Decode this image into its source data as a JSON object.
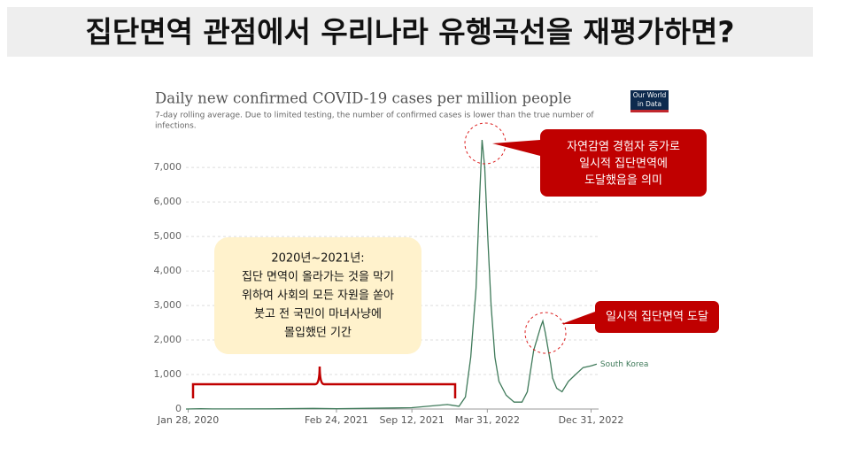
{
  "header": {
    "title": "집단면역 관점에서 우리나라 유행곡선을 재평가하면?"
  },
  "chart_data": {
    "type": "line",
    "title": "Daily new confirmed COVID-19 cases per million people",
    "subtitle": [
      "7-day rolling average. Due to limited testing, the number of confirmed cases is lower than the true number of",
      "infections."
    ],
    "logo": [
      "Our World",
      "in Data"
    ],
    "x": [
      "2020-01-22",
      "2020-03-01",
      "2020-04-01",
      "2020-08-30",
      "2020-12-25",
      "2021-02-24",
      "2021-07-25",
      "2021-09-12",
      "2021-12-15",
      "2022-01-15",
      "2022-02-01",
      "2022-02-15",
      "2022-03-01",
      "2022-03-10",
      "2022-03-17",
      "2022-03-24",
      "2022-04-01",
      "2022-04-10",
      "2022-04-20",
      "2022-05-01",
      "2022-05-20",
      "2022-06-10",
      "2022-07-01",
      "2022-07-15",
      "2022-08-01",
      "2022-08-20",
      "2022-08-25",
      "2022-09-01",
      "2022-09-15",
      "2022-09-20",
      "2022-10-01",
      "2022-10-15",
      "2022-11-01",
      "2022-11-20",
      "2022-12-10",
      "2022-12-31",
      "2023-01-15"
    ],
    "series": [
      {
        "name": "South Korea",
        "color": "#3f7a5a",
        "values": [
          0,
          10,
          2,
          6,
          19,
          8,
          30,
          39,
          130,
          80,
          350,
          1500,
          3500,
          6000,
          7800,
          7000,
          5000,
          3000,
          1500,
          800,
          400,
          200,
          200,
          500,
          1700,
          2400,
          2550,
          2200,
          1300,
          900,
          600,
          500,
          800,
          1000,
          1200,
          1250,
          1300
        ]
      }
    ],
    "xlim": [
      "2020-01-22",
      "2023-01-20"
    ],
    "xticks": [
      {
        "value": "2020-01-28",
        "label": "Jan 28, 2020"
      },
      {
        "value": "2021-02-24",
        "label": "Feb 24, 2021"
      },
      {
        "value": "2021-09-12",
        "label": "Sep 12, 2021"
      },
      {
        "value": "2022-03-31",
        "label": "Mar 31, 2022"
      },
      {
        "value": "2022-12-31",
        "label": "Dec 31, 2022"
      }
    ],
    "ylim": [
      0,
      7800
    ],
    "yticks": [
      0,
      {
        "value": 1000,
        "label": "1,000"
      },
      {
        "value": 2000,
        "label": "2,000"
      },
      {
        "value": 3000,
        "label": "3,000"
      },
      {
        "value": 4000,
        "label": "4,000"
      },
      {
        "value": 5000,
        "label": "5,000"
      },
      {
        "value": 6000,
        "label": "6,000"
      },
      {
        "value": 7000,
        "label": "7,000"
      }
    ],
    "grid": true,
    "annotations": {
      "peak": [
        "자연감염 경험자 증가로",
        "일시적 집단면역에",
        "도달했음을 의미"
      ],
      "second": [
        "일시적 집단면역 도달"
      ],
      "period": [
        "2020년~2021년:",
        "집단 면역이 올라가는 것을 막기",
        "위하여 사회의 모든 자원을 쏟아",
        "붓고 전 국민이 마녀사냥에",
        "몰입했던 기간"
      ]
    }
  }
}
